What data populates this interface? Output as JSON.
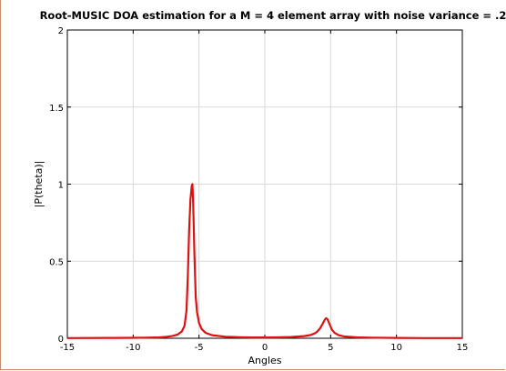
{
  "chart_data": {
    "type": "line",
    "title": "Root-MUSIC DOA estimation for a M = 4 element array with noise variance = .2",
    "xlabel": "Angles",
    "ylabel": "|P(theta)|",
    "xlim": [
      -15,
      15
    ],
    "ylim": [
      0,
      2
    ],
    "xticks": [
      -15,
      -10,
      -5,
      0,
      5,
      10,
      15
    ],
    "yticks": [
      0,
      0.5,
      1,
      1.5,
      2
    ],
    "ytick_labels": [
      "0",
      "0.5",
      "1",
      "1.5",
      "2"
    ],
    "grid": true,
    "series": [
      {
        "color": "#e01010",
        "x": [
          -15,
          -12,
          -10,
          -9,
          -8,
          -7.5,
          -7,
          -6.6,
          -6.3,
          -6.1,
          -5.95,
          -5.85,
          -5.75,
          -5.65,
          -5.55,
          -5.5,
          -5.45,
          -5.35,
          -5.25,
          -5.15,
          -5,
          -4.8,
          -4.5,
          -4,
          -3,
          -2,
          -1,
          0,
          1,
          2,
          3,
          3.5,
          3.8,
          4,
          4.2,
          4.4,
          4.55,
          4.65,
          4.75,
          4.9,
          5.1,
          5.3,
          5.6,
          6,
          7,
          8,
          10,
          12,
          15
        ],
        "y": [
          0.001,
          0.002,
          0.003,
          0.004,
          0.006,
          0.009,
          0.015,
          0.025,
          0.045,
          0.08,
          0.18,
          0.4,
          0.7,
          0.9,
          0.99,
          1.0,
          0.9,
          0.55,
          0.27,
          0.17,
          0.1,
          0.06,
          0.035,
          0.02,
          0.01,
          0.007,
          0.005,
          0.005,
          0.006,
          0.008,
          0.014,
          0.022,
          0.032,
          0.045,
          0.065,
          0.095,
          0.12,
          0.13,
          0.125,
          0.095,
          0.055,
          0.035,
          0.02,
          0.012,
          0.006,
          0.004,
          0.002,
          0.001,
          0.001
        ]
      }
    ]
  }
}
